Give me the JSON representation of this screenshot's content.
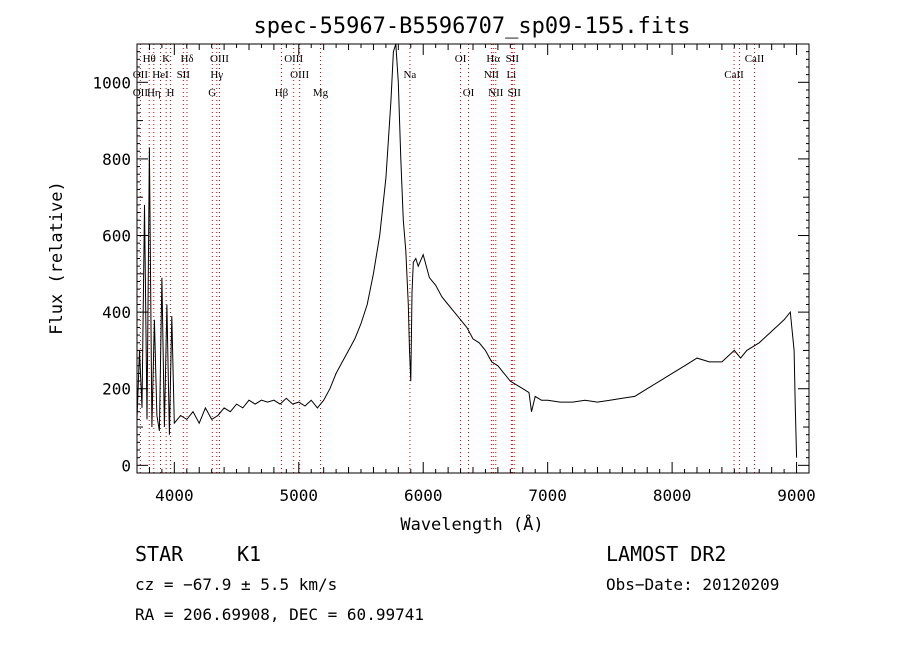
{
  "chart_data": {
    "type": "line",
    "title": "spec-55967-B5596707_sp09-155.fits",
    "xlabel": "Wavelength (Å)",
    "ylabel": "Flux (relative)",
    "xlim": [
      3700,
      9100
    ],
    "ylim": [
      -20,
      1100
    ],
    "x_ticks": [
      "4000",
      "5000",
      "6000",
      "7000",
      "8000",
      "9000"
    ],
    "y_ticks": [
      "0",
      "200",
      "400",
      "600",
      "800",
      "1000"
    ],
    "grid": false,
    "series": [
      {
        "x": [
          3700,
          3720,
          3740,
          3760,
          3780,
          3800,
          3820,
          3840,
          3860,
          3880,
          3900,
          3920,
          3940,
          3960,
          3980,
          4000,
          4050,
          4100,
          4150,
          4200,
          4250,
          4300,
          4350,
          4400,
          4450,
          4500,
          4550,
          4600,
          4650,
          4700,
          4750,
          4800,
          4850,
          4900,
          4950,
          5000,
          5050,
          5100,
          5150,
          5200,
          5250,
          5300,
          5350,
          5400,
          5450,
          5500,
          5550,
          5600,
          5650,
          5700,
          5720,
          5740,
          5760,
          5780,
          5800,
          5820,
          5840,
          5860,
          5880,
          5890,
          5900,
          5910,
          5920,
          5940,
          5960,
          6000,
          6050,
          6100,
          6150,
          6200,
          6250,
          6300,
          6350,
          6400,
          6450,
          6500,
          6550,
          6600,
          6650,
          6700,
          6750,
          6800,
          6850,
          6870,
          6900,
          6950,
          7000,
          7100,
          7200,
          7300,
          7400,
          7500,
          7600,
          7700,
          7800,
          7900,
          8000,
          8100,
          8200,
          8300,
          8400,
          8500,
          8550,
          8600,
          8700,
          8800,
          8900,
          8950,
          8980,
          8990,
          9000
        ],
        "values": [
          120,
          300,
          150,
          680,
          120,
          830,
          100,
          380,
          130,
          90,
          490,
          100,
          420,
          80,
          390,
          110,
          130,
          120,
          140,
          110,
          150,
          120,
          130,
          150,
          140,
          160,
          150,
          170,
          160,
          170,
          165,
          170,
          160,
          175,
          160,
          165,
          155,
          170,
          150,
          170,
          200,
          240,
          270,
          300,
          330,
          370,
          420,
          500,
          600,
          750,
          850,
          950,
          1080,
          1100,
          1000,
          800,
          640,
          560,
          420,
          300,
          220,
          450,
          530,
          540,
          520,
          550,
          490,
          470,
          440,
          420,
          400,
          380,
          360,
          330,
          320,
          300,
          270,
          260,
          240,
          220,
          210,
          200,
          190,
          140,
          180,
          170,
          170,
          165,
          165,
          170,
          165,
          170,
          175,
          180,
          200,
          220,
          240,
          260,
          280,
          270,
          270,
          300,
          280,
          300,
          320,
          350,
          380,
          400,
          300,
          150,
          20
        ]
      }
    ],
    "line_labels": [
      {
        "text": "Hθ",
        "x": 3798,
        "row": 0
      },
      {
        "text": "K",
        "x": 3934,
        "row": 0
      },
      {
        "text": "Hδ",
        "x": 4102,
        "row": 0
      },
      {
        "text": "OII",
        "x": 3727,
        "row": 1
      },
      {
        "text": "HeI",
        "x": 3889,
        "row": 1
      },
      {
        "text": "SII",
        "x": 4072,
        "row": 1
      },
      {
        "text": "OII",
        "x": 3727,
        "row": 2
      },
      {
        "text": "Hη",
        "x": 3835,
        "row": 2
      },
      {
        "text": "H",
        "x": 3969,
        "row": 2
      },
      {
        "text": "OIII",
        "x": 4363,
        "row": 0
      },
      {
        "text": "Hγ",
        "x": 4341,
        "row": 1
      },
      {
        "text": "G",
        "x": 4305,
        "row": 2
      },
      {
        "text": "OIII",
        "x": 4959,
        "row": 0
      },
      {
        "text": "OIII",
        "x": 5007,
        "row": 1
      },
      {
        "text": "Hβ",
        "x": 4861,
        "row": 2
      },
      {
        "text": "Mg",
        "x": 5175,
        "row": 2
      },
      {
        "text": "Na",
        "x": 5893,
        "row": 1
      },
      {
        "text": "OI",
        "x": 6300,
        "row": 0
      },
      {
        "text": "OI",
        "x": 6364,
        "row": 2
      },
      {
        "text": "Hα",
        "x": 6563,
        "row": 0
      },
      {
        "text": "SII",
        "x": 6716,
        "row": 0
      },
      {
        "text": "NII",
        "x": 6548,
        "row": 1
      },
      {
        "text": "Li",
        "x": 6708,
        "row": 1
      },
      {
        "text": "NII",
        "x": 6583,
        "row": 2
      },
      {
        "text": "SII",
        "x": 6731,
        "row": 2
      },
      {
        "text": "CaII",
        "x": 8662,
        "row": 0
      },
      {
        "text": "CaII",
        "x": 8498,
        "row": 1
      }
    ],
    "marker_lines": [
      3727,
      3798,
      3835,
      3889,
      3934,
      3969,
      4072,
      4102,
      4305,
      4341,
      4363,
      4861,
      4959,
      5007,
      5175,
      5893,
      6300,
      6364,
      6548,
      6563,
      6583,
      6708,
      6716,
      6731,
      8498,
      8542,
      8662
    ],
    "marker_color": "#cc0000"
  },
  "info": {
    "object_class": "STAR",
    "subclass": "K1",
    "survey": "LAMOST DR2",
    "cz": "cz = −67.9 ± 5.5 km/s",
    "obs_date": "Obs−Date: 20120209",
    "coords": "RA = 206.69908, DEC =  60.99741"
  }
}
